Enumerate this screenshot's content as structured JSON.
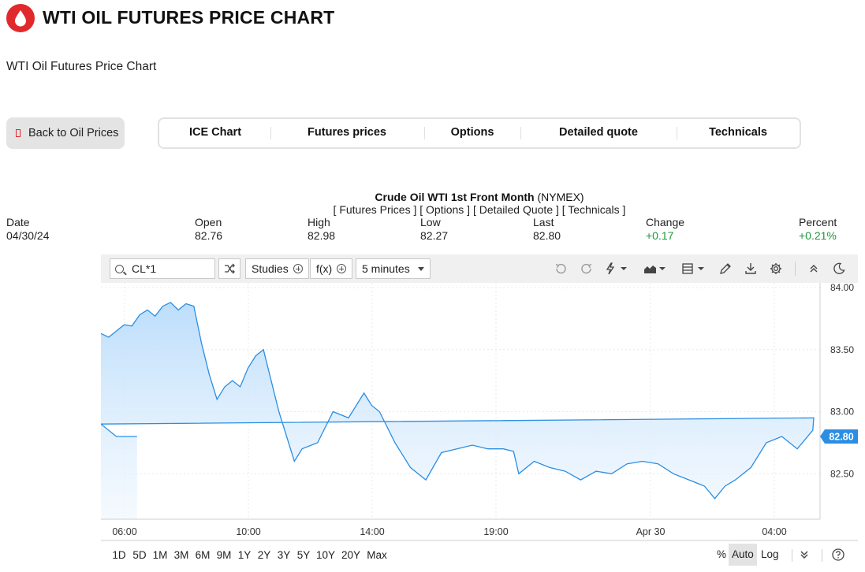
{
  "header": {
    "title": "WTI OIL FUTURES PRICE CHART",
    "subtitle": "WTI Oil Futures Price Chart",
    "back_label": "Back to Oil Prices",
    "brand_color": "#e0292c"
  },
  "tabs": [
    "ICE Chart",
    "Futures prices",
    "Options",
    "Detailed quote",
    "Technicals"
  ],
  "quote": {
    "name": "Crude Oil WTI 1st Front Month",
    "exchange": "(NYMEX)",
    "links": "[ Futures Prices ] [ Options ] [ Detailed Quote ] [ Technicals ]",
    "columns": [
      {
        "label": "Date",
        "value": "04/30/24"
      },
      {
        "label": "Open",
        "value": "82.76"
      },
      {
        "label": "High",
        "value": "82.98"
      },
      {
        "label": "Low",
        "value": "82.27"
      },
      {
        "label": "Last",
        "value": "82.80"
      },
      {
        "label": "Change",
        "value": "+0.17"
      },
      {
        "label": "Percent",
        "value": "+0.21%"
      }
    ]
  },
  "toolbar": {
    "symbol": "CL*1",
    "studies_label": "Studies",
    "fx_label": "f(x)",
    "interval_label": "5 minutes"
  },
  "chart_data": {
    "type": "area",
    "interval": "5 minutes",
    "line_color": "#2b8ee3",
    "x_ticks": [
      "06:00",
      "10:00",
      "14:00",
      "19:00",
      "Apr 30",
      "04:00"
    ],
    "y_ticks": [
      "84.00",
      "83.50",
      "83.00",
      "82.50"
    ],
    "ylim": [
      82.0,
      84.0
    ],
    "last_price": "82.80",
    "x": [
      "04:30",
      "04:45",
      "05:00",
      "05:15",
      "05:30",
      "05:45",
      "06:00",
      "06:15",
      "06:30",
      "06:45",
      "07:00",
      "07:15",
      "07:30",
      "07:45",
      "08:00",
      "08:15",
      "08:30",
      "08:45",
      "09:00",
      "09:15",
      "09:30",
      "09:45",
      "10:00",
      "10:15",
      "10:30",
      "10:45",
      "11:00",
      "11:30",
      "12:00",
      "12:30",
      "13:00",
      "13:15",
      "13:30",
      "14:00",
      "14:30",
      "15:00",
      "15:30",
      "16:00",
      "16:30",
      "17:00",
      "17:30",
      "17:50",
      "18:00",
      "18:30",
      "19:00",
      "19:30",
      "20:00",
      "20:30",
      "21:00",
      "21:30",
      "22:00",
      "22:30",
      "23:00",
      "23:30",
      "00:00",
      "00:20",
      "00:40",
      "01:00",
      "01:30",
      "02:00",
      "02:30",
      "03:00",
      "03:30",
      "04:00",
      "04:30",
      "05:00",
      "05:40"
    ],
    "values": [
      83.63,
      83.6,
      83.65,
      83.7,
      83.69,
      83.78,
      83.82,
      83.77,
      83.85,
      83.88,
      83.82,
      83.87,
      83.85,
      83.55,
      83.3,
      83.1,
      83.2,
      83.25,
      83.2,
      83.35,
      83.45,
      83.5,
      83.25,
      83.0,
      82.8,
      82.6,
      82.7,
      82.75,
      83.0,
      82.95,
      83.15,
      83.05,
      83.0,
      82.75,
      82.55,
      82.45,
      82.67,
      82.7,
      82.73,
      82.7,
      82.7,
      82.68,
      82.5,
      82.6,
      82.55,
      82.52,
      82.45,
      82.52,
      82.5,
      82.58,
      82.6,
      82.58,
      82.5,
      82.45,
      82.4,
      82.3,
      82.4,
      82.45,
      82.55,
      82.75,
      82.8,
      82.7,
      82.85,
      82.95,
      82.9,
      82.8,
      82.8
    ]
  },
  "ranges": [
    "1D",
    "5D",
    "1M",
    "3M",
    "6M",
    "9M",
    "1Y",
    "2Y",
    "3Y",
    "5Y",
    "10Y",
    "20Y",
    "Max"
  ],
  "scale": [
    "%",
    "Auto",
    "Log"
  ]
}
